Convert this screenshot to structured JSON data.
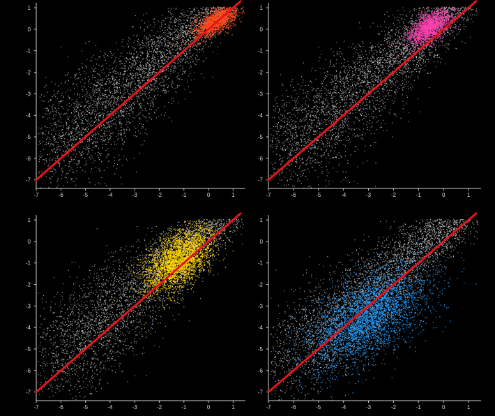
{
  "chart_data": [
    {
      "type": "scatter",
      "panel": "top-left",
      "xlim": [
        -7,
        1.5
      ],
      "ylim": [
        -7.4,
        1.1
      ],
      "xticks": [
        "-7",
        "-6",
        "-5",
        "-4",
        "-3",
        "-2",
        "-1",
        "0",
        "1"
      ],
      "yticks": [
        "1",
        "0",
        "-1",
        "-2",
        "-3",
        "-4",
        "-5",
        "-6",
        "-7"
      ],
      "background_points_color": "#d9d9d9",
      "highlight_color": "#ff4a1c",
      "highlight_region": {
        "x_center": 0.3,
        "y_center": 0.4,
        "x_spread": 0.7,
        "y_spread": 0.45
      },
      "reference_line": {
        "color": "#e8141c",
        "x": [
          -7,
          1.3
        ],
        "y": [
          -7,
          1.3
        ]
      },
      "grid": false
    },
    {
      "type": "scatter",
      "panel": "top-right",
      "xlim": [
        -7,
        1.5
      ],
      "ylim": [
        -7.4,
        1.1
      ],
      "xticks": [
        "-7",
        "-6",
        "-5",
        "-4",
        "-3",
        "-2",
        "-1",
        "0",
        "1"
      ],
      "yticks": [
        "1",
        "0",
        "-1",
        "-2",
        "-3",
        "-4",
        "-5",
        "-6",
        "-7"
      ],
      "background_points_color": "#d9d9d9",
      "highlight_color": "#ff3fb0",
      "highlight_region": {
        "x_center": -0.6,
        "y_center": 0.1,
        "x_spread": 0.7,
        "y_spread": 0.55
      },
      "reference_line": {
        "color": "#e8141c",
        "x": [
          -7,
          1.3
        ],
        "y": [
          -7,
          1.3
        ]
      },
      "grid": false
    },
    {
      "type": "scatter",
      "panel": "bottom-left",
      "xlim": [
        -7,
        1.5
      ],
      "ylim": [
        -7.4,
        1.1
      ],
      "xticks": [
        "-7",
        "-6",
        "-5",
        "-4",
        "-3",
        "-2",
        "-1",
        "0",
        "1"
      ],
      "yticks": [
        "1",
        "0",
        "-1",
        "-2",
        "-3",
        "-4",
        "-5",
        "-6",
        "-7"
      ],
      "background_points_color": "#d9d9d9",
      "highlight_color": "#ffd400",
      "highlight_region": {
        "x_center": -1.2,
        "y_center": -0.8,
        "x_spread": 1.1,
        "y_spread": 1.0
      },
      "reference_line": {
        "color": "#e8141c",
        "x": [
          -7,
          1.3
        ],
        "y": [
          -7,
          1.3
        ]
      },
      "grid": false
    },
    {
      "type": "scatter",
      "panel": "bottom-right",
      "xlim": [
        -7,
        1.5
      ],
      "ylim": [
        -7.4,
        1.1
      ],
      "xticks": [
        "-7",
        "-6",
        "-5",
        "-4",
        "-3",
        "-2",
        "-1",
        "0",
        "1"
      ],
      "yticks": [
        "1",
        "0",
        "-1",
        "-2",
        "-3",
        "-4",
        "-5",
        "-6",
        "-7"
      ],
      "background_points_color": "#d9d9d9",
      "highlight_color": "#1e9bff",
      "highlight_region": {
        "x_center": -3.0,
        "y_center": -3.5,
        "x_spread": 2.0,
        "y_spread": 1.6
      },
      "reference_line": {
        "color": "#e8141c",
        "x": [
          -7,
          1.3
        ],
        "y": [
          -7,
          1.3
        ]
      },
      "grid": false
    }
  ]
}
